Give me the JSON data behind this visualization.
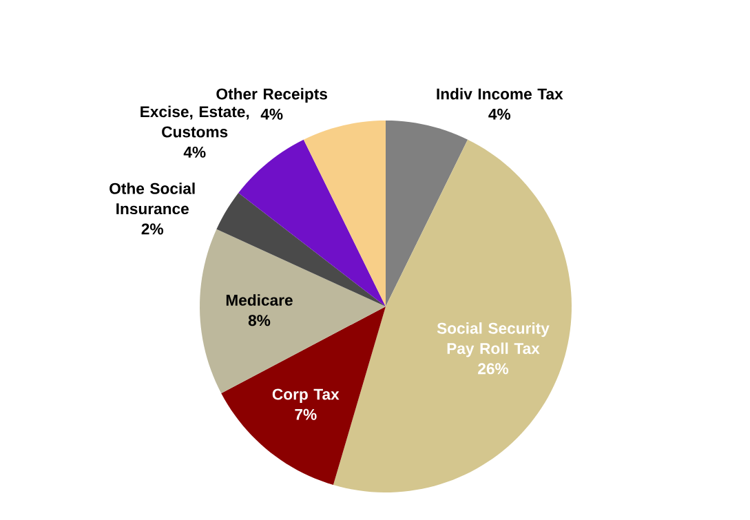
{
  "chart_data": {
    "type": "pie",
    "categories": [
      "Indiv Income Tax",
      "Social Security Pay Roll Tax",
      "Corp Tax",
      "Medicare",
      "Othe Social Insurance",
      "Excise, Estate, Customs",
      "Other Receipts"
    ],
    "values": [
      4,
      26,
      7,
      8,
      2,
      4,
      4
    ],
    "value_labels": [
      "4%",
      "26%",
      "7%",
      "8%",
      "2%",
      "4%",
      "4%"
    ],
    "colors": [
      "#808080",
      "#d4c68e",
      "#8b0000",
      "#bdb89c",
      "#4a4a4a",
      "#7010c8",
      "#f8cf88"
    ]
  }
}
